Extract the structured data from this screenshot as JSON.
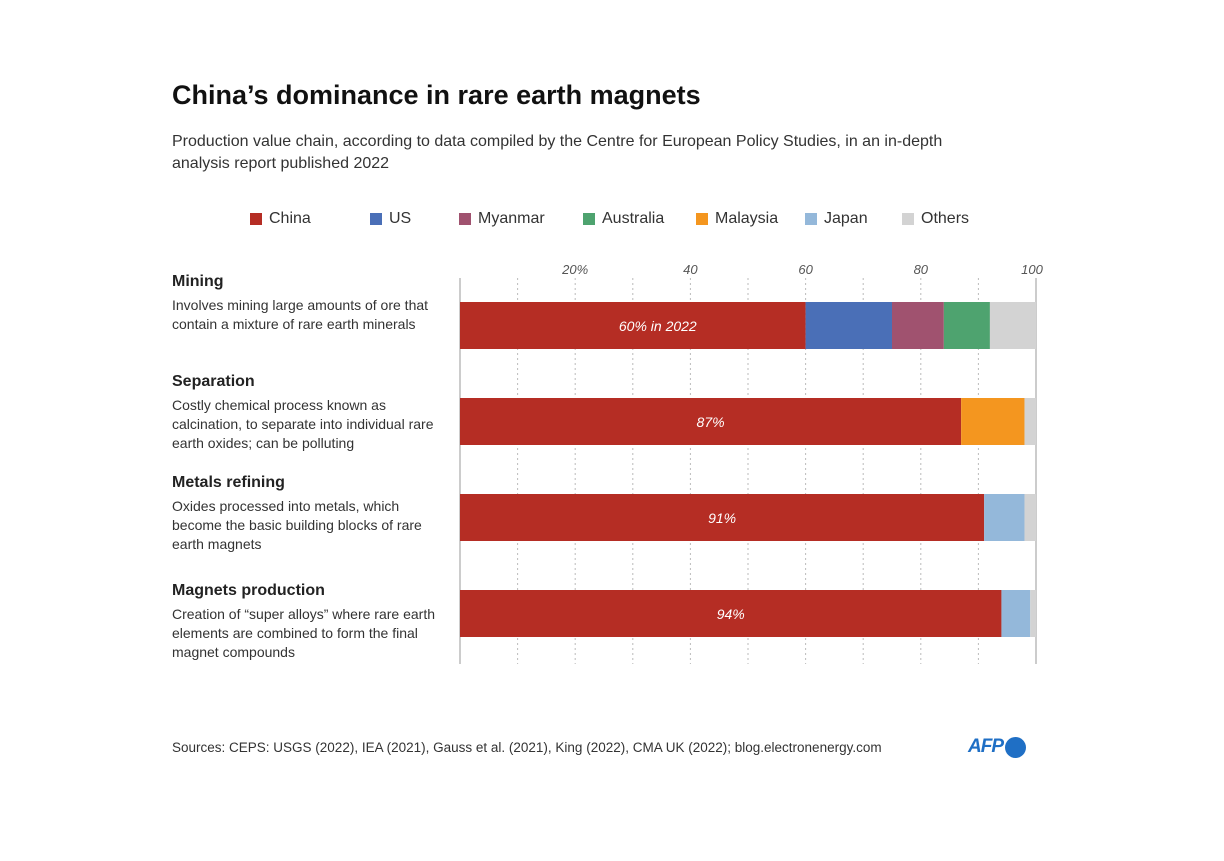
{
  "chart_data": {
    "type": "bar",
    "orientation": "horizontal",
    "stacked": true,
    "title": "China’s dominance in rare earth magnets",
    "subtitle": "Production value chain, according to data compiled by the Centre for European Policy Studies, in an in-depth analysis report published 2022",
    "legend_placement": "top",
    "xlim": [
      0,
      100
    ],
    "x_ticks": [
      "20%",
      "40",
      "60",
      "80",
      "100"
    ],
    "grid": true,
    "categories": [
      {
        "name": "Mining",
        "description": "Involves mining large amounts of ore that contain a mixture of rare earth minerals",
        "label": "60% in 2022"
      },
      {
        "name": "Separation",
        "description": "Costly chemical process known as calcination, to separate into individual rare earth oxides; can be polluting",
        "label": "87%"
      },
      {
        "name": "Metals refining",
        "description": "Oxides processed into metals, which become the basic building blocks of rare earth magnets",
        "label": "91%"
      },
      {
        "name": "Magnets production",
        "description": "Creation of “super alloys” where rare earth elements are combined to form the final magnet compounds",
        "label": "94%"
      }
    ],
    "series": [
      {
        "name": "China",
        "color": "#b52d24",
        "values": [
          60,
          87,
          91,
          94
        ]
      },
      {
        "name": "US",
        "color": "#4a6fb7",
        "values": [
          15,
          0,
          0,
          0
        ]
      },
      {
        "name": "Myanmar",
        "color": "#a0526f",
        "values": [
          9,
          0,
          0,
          0
        ]
      },
      {
        "name": "Australia",
        "color": "#4ea36f",
        "values": [
          8,
          0,
          0,
          0
        ]
      },
      {
        "name": "Malaysia",
        "color": "#f4961f",
        "values": [
          0,
          11,
          0,
          0
        ]
      },
      {
        "name": "Japan",
        "color": "#94b8da",
        "values": [
          0,
          0,
          7,
          5
        ]
      },
      {
        "name": "Others",
        "color": "#d3d3d3",
        "values": [
          8,
          2,
          2,
          1
        ]
      }
    ]
  },
  "source": "Sources: CEPS: USGS (2022), IEA (2021), Gauss et al. (2021), King (2022), CMA UK (2022); blog.electronenergy.com",
  "logo": "AFP"
}
